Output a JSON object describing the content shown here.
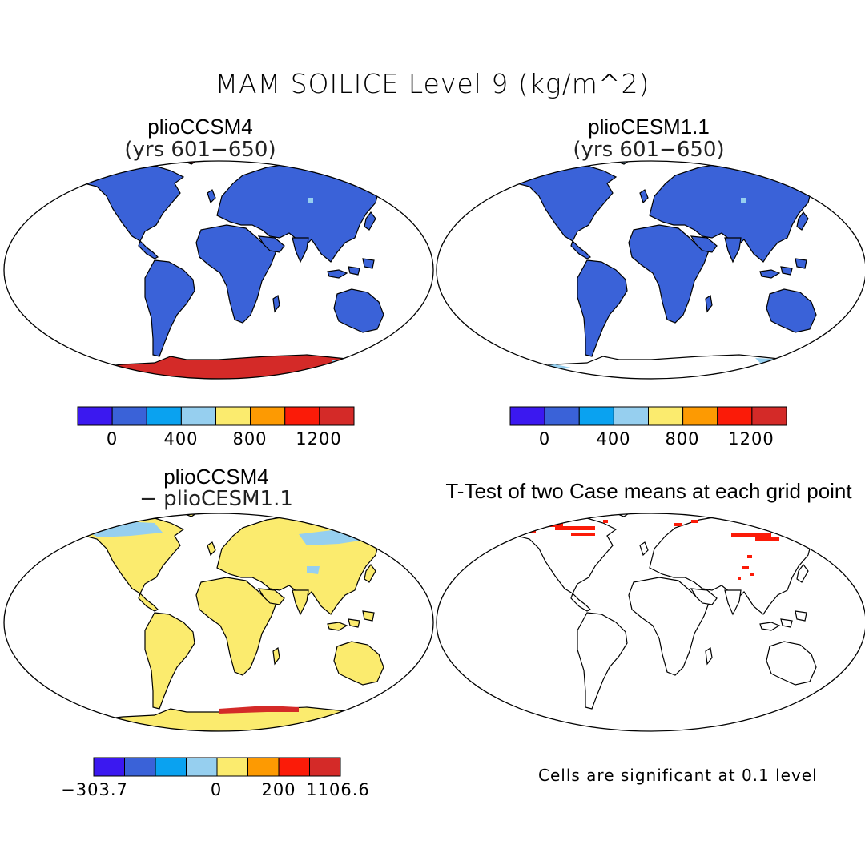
{
  "title": "MAM SOILICE Level 9 (kg/m^2)",
  "panels": [
    {
      "id": "p1",
      "title": "plioCCSM4",
      "subtitle": "(yrs 601−650)"
    },
    {
      "id": "p2",
      "title": "plioCESM1.1",
      "subtitle": "(yrs 601−650)"
    },
    {
      "id": "p3",
      "title": "plioCCSM4",
      "subtitle": "− plioCESM1.1"
    },
    {
      "id": "p4",
      "title": "T-Test of two Case means at each grid point",
      "subtitle": ""
    }
  ],
  "colorbars": {
    "absolute": {
      "colors": [
        "#3b18f0",
        "#3a62d8",
        "#0aa2f0",
        "#96cfef",
        "#fbeb6e",
        "#fd9a02",
        "#fb1b08",
        "#d42a28"
      ],
      "labels": [
        "0",
        "400",
        "800",
        "1200"
      ]
    },
    "difference": {
      "colors": [
        "#3b18f0",
        "#3a62d8",
        "#0aa2f0",
        "#96cfef",
        "#fbeb6e",
        "#fd9a02",
        "#fb1b08",
        "#d42a28"
      ],
      "labels": [
        "−303.7",
        "0",
        "200",
        "1106.6"
      ]
    }
  },
  "significance_note": "Cells are significant at 0.1 level",
  "map_colors": {
    "land_absolute": "#3a62d8",
    "land_difference": "#fbeb6e",
    "antarctica_ccsm4": "#d42a28",
    "light_patches": "#96cfef",
    "significant": "#fb1b08"
  }
}
